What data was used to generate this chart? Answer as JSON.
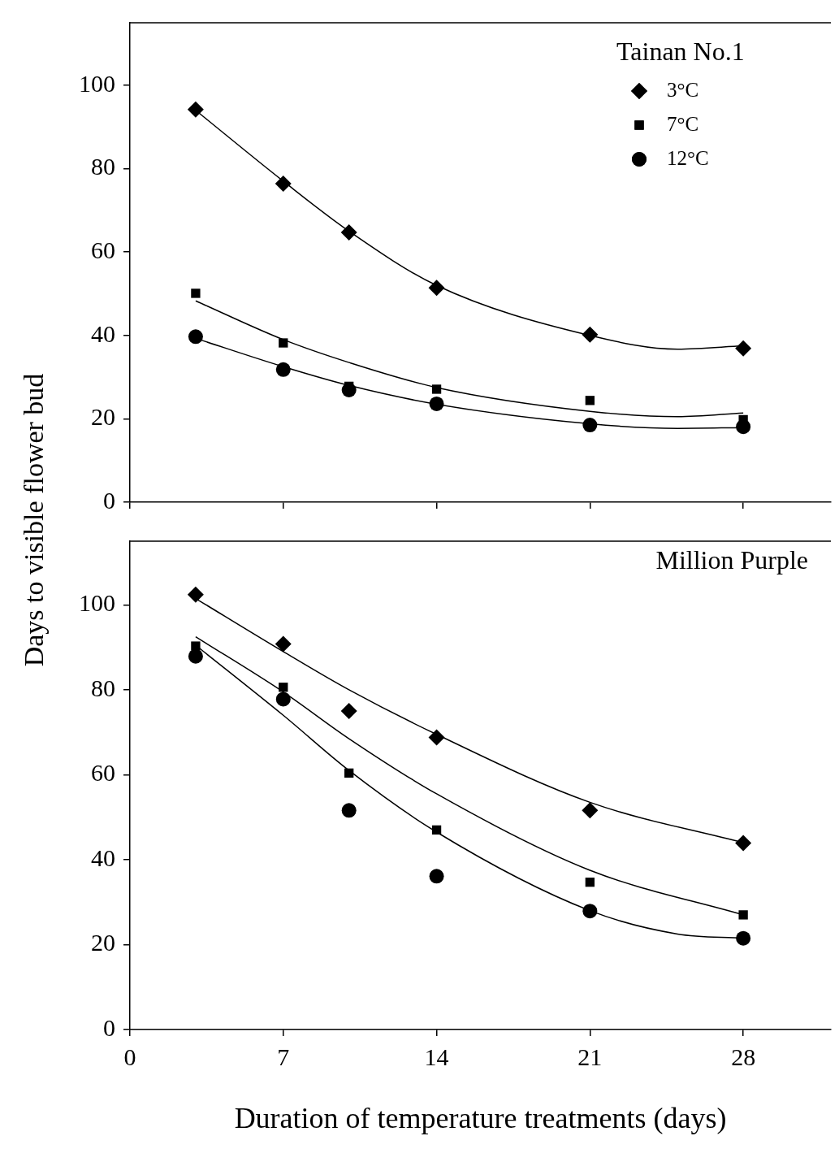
{
  "chart_data": [
    {
      "type": "scatter",
      "ylabel": "Days to visible flower bud",
      "legend_title": "Tainan No.1",
      "legend": "top right",
      "x": [
        3,
        7,
        10,
        14,
        21,
        28
      ],
      "xlim": [
        0,
        32
      ],
      "xticks": [
        0,
        7,
        14,
        21,
        28
      ],
      "ylim": [
        0,
        115
      ],
      "yticks": [
        0,
        20,
        40,
        60,
        80,
        100
      ],
      "tick_labels": "y",
      "series": [
        {
          "name": "3°C",
          "color": "#000000",
          "marker": "diamond",
          "values": [
            94.2,
            76.4,
            64.7,
            51.4,
            40.2,
            36.9
          ]
        },
        {
          "name": "7°C",
          "color": "#000000",
          "marker": "square",
          "values": [
            50.1,
            38.2,
            27.8,
            27.1,
            24.4,
            19.8
          ]
        },
        {
          "name": "12°C",
          "color": "#000000",
          "marker": "circle",
          "values": [
            39.7,
            31.8,
            26.9,
            23.6,
            18.5,
            18.1
          ]
        },
        {
          "type": "line",
          "color": "#000000",
          "marker": "none",
          "x": [
            3,
            7,
            10,
            14,
            21,
            25,
            28
          ],
          "values": [
            94,
            77,
            65,
            52,
            40,
            36.7,
            37.5
          ]
        },
        {
          "type": "line",
          "color": "#000000",
          "marker": "none",
          "x": [
            3,
            7,
            10,
            14,
            21,
            25,
            28
          ],
          "values": [
            48.3,
            39,
            33.5,
            27.5,
            21.8,
            20.5,
            21.4
          ]
        },
        {
          "type": "line",
          "color": "#000000",
          "marker": "none",
          "x": [
            3,
            7,
            10,
            14,
            21,
            25,
            28
          ],
          "values": [
            39.3,
            32.5,
            28,
            23.5,
            18.8,
            17.7,
            17.9
          ]
        }
      ]
    },
    {
      "type": "scatter",
      "xlabel": "Duration of temperature treatments (days)",
      "annotations": [
        "Million Purple"
      ],
      "x": [
        3,
        7,
        10,
        14,
        21,
        28
      ],
      "xlim": [
        0,
        32
      ],
      "xticks": [
        0,
        7,
        14,
        21,
        28
      ],
      "ylim": [
        0,
        115
      ],
      "yticks": [
        0,
        20,
        40,
        60,
        80,
        100
      ],
      "series": [
        {
          "color": "#000000",
          "marker": "diamond",
          "values": [
            102.4,
            90.8,
            75.0,
            68.8,
            51.6,
            43.9
          ]
        },
        {
          "color": "#000000",
          "marker": "square",
          "values": [
            90.3,
            80.6,
            60.4,
            47.0,
            34.7,
            27.0
          ]
        },
        {
          "color": "#000000",
          "marker": "circle",
          "values": [
            87.9,
            77.8,
            51.6,
            36.1,
            27.9,
            21.5
          ]
        },
        {
          "type": "line",
          "color": "#000000",
          "marker": "none",
          "x": [
            3,
            7,
            10,
            14,
            21,
            28
          ],
          "values": [
            101.5,
            89,
            80,
            69.5,
            53.5,
            44
          ]
        },
        {
          "type": "line",
          "color": "#000000",
          "marker": "none",
          "x": [
            3,
            7,
            10,
            14,
            21,
            28
          ],
          "values": [
            92.5,
            79.5,
            68.5,
            55.5,
            37.5,
            27
          ]
        },
        {
          "type": "line",
          "color": "#000000",
          "marker": "none",
          "x": [
            3,
            7,
            10,
            14,
            21,
            25,
            28
          ],
          "values": [
            90.5,
            74,
            61,
            46.5,
            28,
            22.5,
            21.5
          ]
        }
      ]
    }
  ]
}
